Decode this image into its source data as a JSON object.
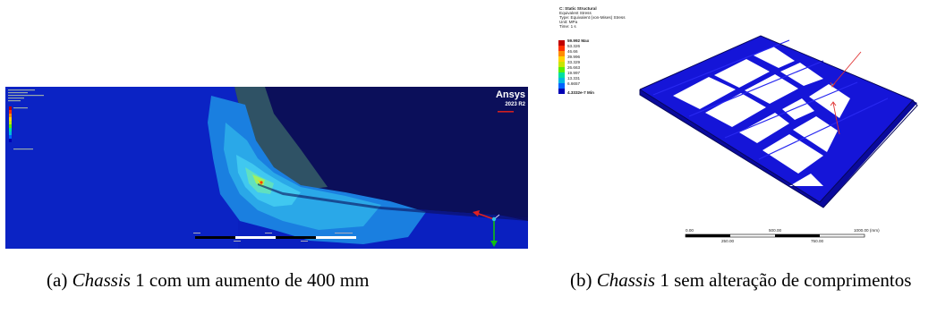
{
  "figure_a": {
    "logo": "Ansys",
    "version": "2023 R2"
  },
  "figure_b": {
    "header": [
      "C: Static Structural",
      "Equivalent Stress",
      "Type: Equivalent (von-Mises) Stress",
      "Unit: MPa",
      "Time: 1 s"
    ],
    "legend": {
      "max": "59.992 Max",
      "values": [
        "53.326",
        "46.66",
        "39.996",
        "33.329",
        "26.663",
        "19.997",
        "13.331",
        "6.6657"
      ],
      "min": "4.3332e-7 Min",
      "colors": [
        "#c00000",
        "#ff3000",
        "#ff8c00",
        "#ffd400",
        "#c8e600",
        "#5af000",
        "#00e0a0",
        "#00b8e0",
        "#0064ff",
        "#0000b4"
      ]
    },
    "scale": {
      "top_labels": [
        "0.00",
        "500.00",
        "1000.00 (mm)"
      ],
      "bottom_labels": [
        "250.00",
        "750.00"
      ]
    }
  },
  "captions": {
    "a": {
      "tag": "(a)",
      "italic": "Chassis",
      "rest": " 1 com um aumento de 400 mm"
    },
    "b": {
      "tag": "(b)",
      "italic": "Chassis",
      "rest": " 1 sem alteração de comprimentos"
    }
  }
}
